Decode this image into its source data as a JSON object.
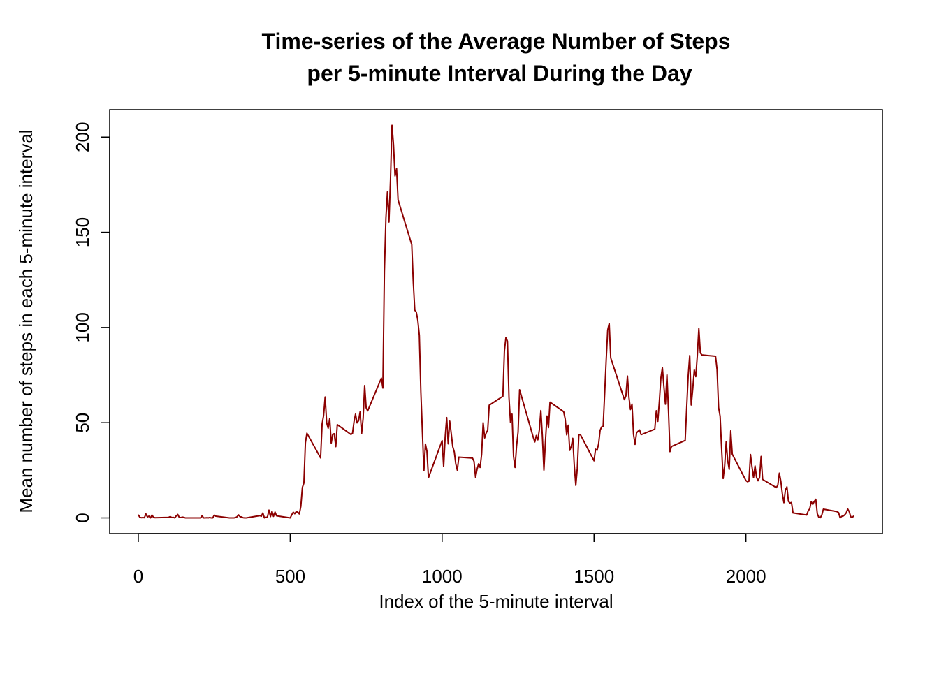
{
  "chart_data": {
    "type": "line",
    "title": [
      "Time-series of the Average Number of Steps",
      "per 5-minute Interval During the Day"
    ],
    "x_label": "Index of the 5-minute interval",
    "y_label": "Mean number of steps in each 5-minute interval",
    "color": "#8b0000",
    "xlim": [
      -94.2,
      2449.2
    ],
    "xticks": [
      0,
      500,
      1000,
      1500,
      2000
    ],
    "ylim": [
      -8.25,
      214.4
    ],
    "yticks": [
      0,
      50,
      100,
      150,
      200
    ],
    "x": [
      0,
      5,
      10,
      15,
      20,
      25,
      30,
      35,
      40,
      45,
      50,
      55,
      100,
      105,
      110,
      115,
      120,
      125,
      130,
      135,
      140,
      145,
      150,
      155,
      200,
      205,
      210,
      215,
      220,
      225,
      230,
      235,
      240,
      245,
      250,
      255,
      300,
      305,
      310,
      315,
      320,
      325,
      330,
      335,
      340,
      345,
      350,
      355,
      400,
      405,
      410,
      415,
      420,
      425,
      430,
      435,
      440,
      445,
      450,
      455,
      500,
      505,
      510,
      515,
      520,
      525,
      530,
      535,
      540,
      545,
      550,
      555,
      600,
      605,
      610,
      615,
      620,
      625,
      630,
      635,
      640,
      645,
      650,
      655,
      700,
      705,
      710,
      715,
      720,
      725,
      730,
      735,
      740,
      745,
      750,
      755,
      800,
      805,
      810,
      815,
      820,
      825,
      830,
      835,
      840,
      845,
      850,
      855,
      900,
      905,
      910,
      915,
      920,
      925,
      930,
      935,
      940,
      945,
      950,
      955,
      1000,
      1005,
      1010,
      1015,
      1020,
      1025,
      1030,
      1035,
      1040,
      1045,
      1050,
      1055,
      1100,
      1105,
      1110,
      1115,
      1120,
      1125,
      1130,
      1135,
      1140,
      1145,
      1150,
      1155,
      1200,
      1205,
      1210,
      1215,
      1220,
      1225,
      1230,
      1235,
      1240,
      1245,
      1250,
      1255,
      1300,
      1305,
      1310,
      1315,
      1320,
      1325,
      1330,
      1335,
      1340,
      1345,
      1350,
      1355,
      1400,
      1405,
      1410,
      1415,
      1420,
      1425,
      1430,
      1435,
      1440,
      1445,
      1450,
      1455,
      1500,
      1505,
      1510,
      1515,
      1520,
      1525,
      1530,
      1535,
      1540,
      1545,
      1550,
      1555,
      1600,
      1605,
      1610,
      1615,
      1620,
      1625,
      1630,
      1635,
      1640,
      1645,
      1650,
      1655,
      1700,
      1705,
      1710,
      1715,
      1720,
      1725,
      1730,
      1735,
      1740,
      1745,
      1750,
      1755,
      1800,
      1805,
      1810,
      1815,
      1820,
      1825,
      1830,
      1835,
      1840,
      1845,
      1850,
      1855,
      1900,
      1905,
      1910,
      1915,
      1920,
      1925,
      1930,
      1935,
      1940,
      1945,
      1950,
      1955,
      2000,
      2005,
      2010,
      2015,
      2020,
      2025,
      2030,
      2035,
      2040,
      2045,
      2050,
      2055,
      2100,
      2105,
      2110,
      2115,
      2120,
      2125,
      2130,
      2135,
      2140,
      2145,
      2150,
      2155,
      2200,
      2205,
      2210,
      2215,
      2220,
      2225,
      2230,
      2235,
      2240,
      2245,
      2250,
      2255,
      2300,
      2305,
      2310,
      2315,
      2320,
      2325,
      2330,
      2335,
      2340,
      2345,
      2350,
      2355
    ],
    "values": [
      1.7,
      0.3,
      0.1,
      0.2,
      0.1,
      2.1,
      0.5,
      0.9,
      0,
      1.5,
      0.3,
      0.1,
      0.3,
      0.7,
      0.2,
      0.3,
      0,
      1.1,
      1.8,
      0.2,
      0.2,
      0.4,
      0.3,
      0,
      0,
      0,
      1.1,
      0,
      0,
      0.1,
      0,
      0.2,
      0,
      0,
      1.5,
      0.9,
      0,
      0,
      0,
      0,
      0.2,
      0.6,
      1.6,
      0.6,
      0.5,
      0.1,
      0,
      0,
      1.2,
      0.9,
      2.6,
      0,
      0.3,
      0.4,
      4.1,
      0.7,
      3.5,
      0.8,
      3.1,
      1.1,
      0,
      1.6,
      3.0,
      2.2,
      3.3,
      3.0,
      2.1,
      6.1,
      16.0,
      18.3,
      39.5,
      44.5,
      31.5,
      49.3,
      53.8,
      63.5,
      50.0,
      47.1,
      52.2,
      39.3,
      44.0,
      44.2,
      37.4,
      49.0,
      43.8,
      44.4,
      50.5,
      54.5,
      49.9,
      51.0,
      55.7,
      44.3,
      52.3,
      69.5,
      57.8,
      56.2,
      73.4,
      68.2,
      129.4,
      157.5,
      171.2,
      155.4,
      177.3,
      206.2,
      195.9,
      179.6,
      183.4,
      167.0,
      143.5,
      124.0,
      109.1,
      108.1,
      103.7,
      95.9,
      66.2,
      45.2,
      24.8,
      38.8,
      35.0,
      21.1,
      40.6,
      27.0,
      42.4,
      52.7,
      38.9,
      50.8,
      44.3,
      37.4,
      34.7,
      28.3,
      25.1,
      31.9,
      31.4,
      29.7,
      21.3,
      25.5,
      28.4,
      26.5,
      33.4,
      50.0,
      42.0,
      44.6,
      46.0,
      59.2,
      63.9,
      87.7,
      94.8,
      92.8,
      63.4,
      50.2,
      54.5,
      32.4,
      26.5,
      37.7,
      45.1,
      67.3,
      42.3,
      39.9,
      43.3,
      41.0,
      46.2,
      56.4,
      42.8,
      25.1,
      40.0,
      53.5,
      47.4,
      60.8,
      55.8,
      52.0,
      43.6,
      48.7,
      35.5,
      37.5,
      41.8,
      27.5,
      17.1,
      26.1,
      43.6,
      43.8,
      30.0,
      36.1,
      35.5,
      38.8,
      46.0,
      47.8,
      48.1,
      65.3,
      82.9,
      98.7,
      102.1,
      84.0,
      62.1,
      64.1,
      74.5,
      63.2,
      56.9,
      59.8,
      43.9,
      38.6,
      44.7,
      45.5,
      46.2,
      43.7,
      46.6,
      56.3,
      50.7,
      61.2,
      73.4,
      78.9,
      68.9,
      59.7,
      75.1,
      56.5,
      34.8,
      37.5,
      40.7,
      58.0,
      74.7,
      85.3,
      59.3,
      67.8,
      77.7,
      74.2,
      85.3,
      99.5,
      86.6,
      85.6,
      84.9,
      77.8,
      58.0,
      53.4,
      36.3,
      20.7,
      27.4,
      40.0,
      30.2,
      25.5,
      45.7,
      33.5,
      19.6,
      19.0,
      19.3,
      33.3,
      26.8,
      21.2,
      27.3,
      21.3,
      19.5,
      21.3,
      32.3,
      20.2,
      15.9,
      17.2,
      23.5,
      19.2,
      12.5,
      8.0,
      14.7,
      16.3,
      8.7,
      7.8,
      8.1,
      2.6,
      1.5,
      3.7,
      4.8,
      8.5,
      7.1,
      8.7,
      9.8,
      2.2,
      0.3,
      0.1,
      1.6,
      4.6,
      3.3,
      2.8,
      0,
      0.8,
      1.0,
      1.6,
      2.6,
      4.7,
      3.3,
      0.6,
      0.2,
      1.1
    ]
  }
}
